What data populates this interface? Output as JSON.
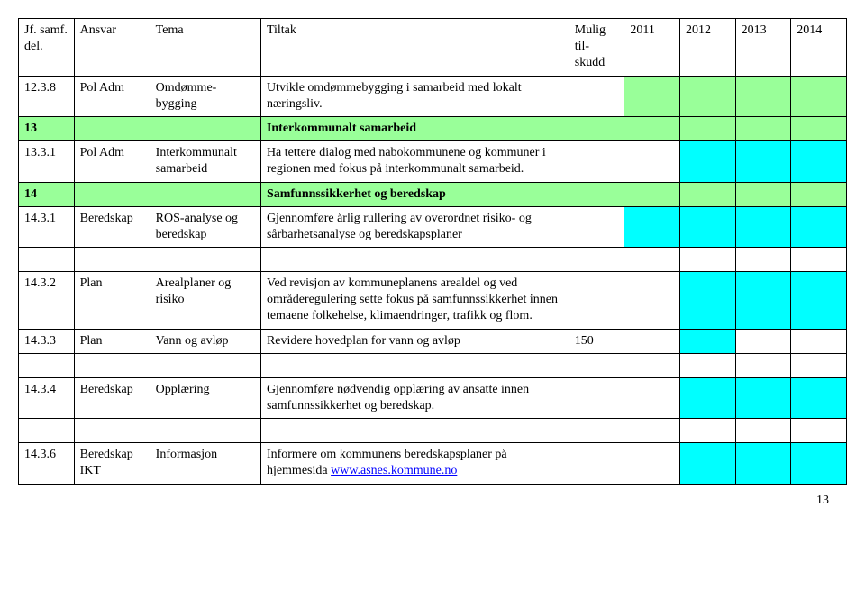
{
  "headers": {
    "id": "Jf. samf. del.",
    "ansvar": "Ansvar",
    "tema": "Tema",
    "tiltak": "Tiltak",
    "mulig": "Mulig til-skudd",
    "y2011": "2011",
    "y2012": "2012",
    "y2013": "2013",
    "y2014": "2014"
  },
  "colors": {
    "green": "#99ff99",
    "cyan": "#00ffff",
    "white": "#ffffff",
    "black": "#000000"
  },
  "rows": [
    {
      "type": "header"
    },
    {
      "type": "data",
      "id": "12.3.8",
      "ansvar": "Pol Adm",
      "tema": "Omdømme-bygging",
      "tiltak": "Utvikle omdømmebygging i samarbeid med lokalt næringsliv.",
      "mulig": "",
      "cells": [
        "green",
        "green",
        "green",
        "green"
      ],
      "vals": [
        "",
        "",
        "",
        ""
      ]
    },
    {
      "type": "section",
      "id": "13",
      "title": "Interkommunalt samarbeid",
      "row_color": "green"
    },
    {
      "type": "data",
      "id": "13.3.1",
      "ansvar": "Pol Adm",
      "tema": "Interkommunalt samarbeid",
      "tiltak": "Ha tettere dialog med nabokommunene og kommuner i regionen med fokus på interkommunalt samarbeid.",
      "mulig": "",
      "cells": [
        "white",
        "cyan",
        "cyan",
        "cyan"
      ],
      "vals": [
        "",
        "",
        "",
        ""
      ]
    },
    {
      "type": "section",
      "id": "14",
      "title": "Samfunnssikkerhet og beredskap",
      "row_color": "green"
    },
    {
      "type": "data",
      "id": "14.3.1",
      "ansvar": "Beredskap",
      "tema": "ROS-analyse og beredskap",
      "tiltak": "Gjennomføre årlig rullering av overordnet risiko- og sårbarhetsanalyse og beredskapsplaner",
      "mulig": "",
      "cells": [
        "cyan",
        "cyan",
        "cyan",
        "cyan"
      ],
      "vals": [
        "",
        "",
        "",
        ""
      ]
    },
    {
      "type": "gap"
    },
    {
      "type": "data",
      "id": "14.3.2",
      "ansvar": "Plan",
      "tema": "Arealplaner og risiko",
      "tiltak": "Ved revisjon av kommuneplanens arealdel og ved områderegulering sette fokus på samfunnssikkerhet innen temaene folkehelse, klimaendringer, trafikk og flom.",
      "mulig": "",
      "cells": [
        "white",
        "cyan",
        "cyan",
        "cyan"
      ],
      "vals": [
        "",
        "",
        "",
        ""
      ]
    },
    {
      "type": "data",
      "id": "14.3.3",
      "ansvar": "Plan",
      "tema": "Vann og avløp",
      "tiltak": "Revidere hovedplan for vann og avløp",
      "mulig": "150",
      "cells": [
        "white",
        "cyan",
        "white",
        "white"
      ],
      "vals": [
        "",
        "",
        "",
        ""
      ]
    },
    {
      "type": "gap"
    },
    {
      "type": "data",
      "id": "14.3.4",
      "ansvar": "Beredskap",
      "tema": "Opplæring",
      "tiltak": "Gjennomføre nødvendig opplæring av ansatte innen samfunnssikkerhet og beredskap.",
      "mulig": "",
      "cells": [
        "white",
        "cyan",
        "cyan",
        "cyan"
      ],
      "vals": [
        "",
        "",
        "",
        ""
      ]
    },
    {
      "type": "gap"
    },
    {
      "type": "data-link",
      "id": "14.3.6",
      "ansvar": "Beredskap IKT",
      "tema": "Informasjon",
      "tiltak_prefix": "Informere om kommunens beredskapsplaner på hjemmesida ",
      "tiltak_link": "www.asnes.kommune.no",
      "mulig": "",
      "cells": [
        "white",
        "cyan",
        "cyan",
        "cyan"
      ],
      "vals": [
        "",
        "",
        "",
        ""
      ]
    }
  ],
  "page_number": "13"
}
